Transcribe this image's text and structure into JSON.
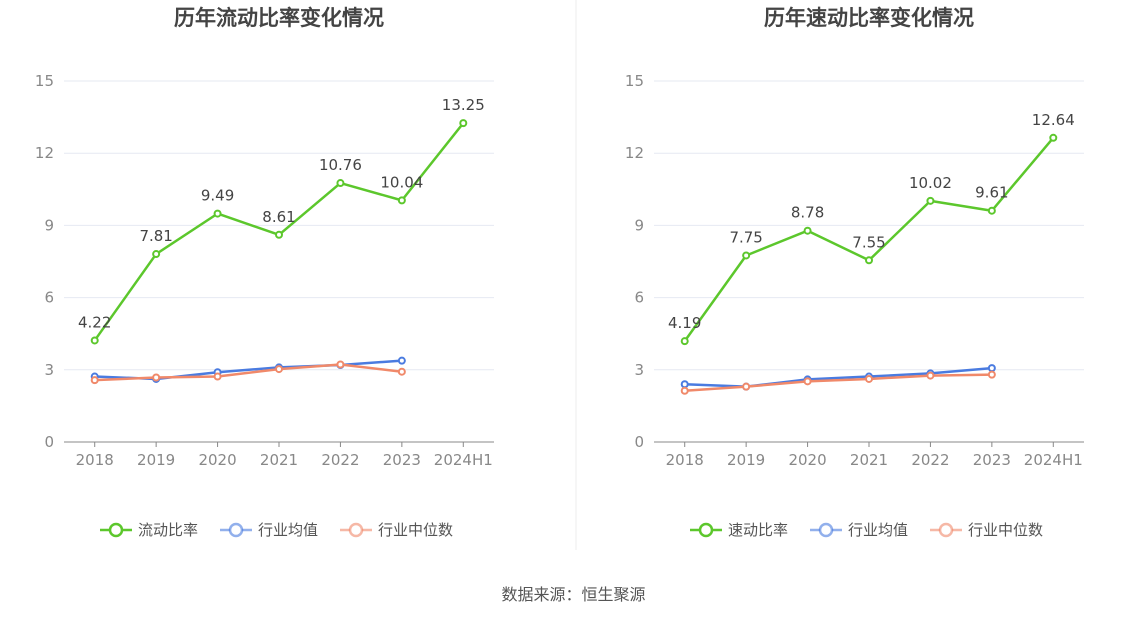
{
  "source": "数据来源：恒生聚源",
  "chart_data": [
    {
      "type": "line",
      "title": "历年流动比率变化情况",
      "categories": [
        "2018",
        "2019",
        "2020",
        "2021",
        "2022",
        "2023",
        "2024H1"
      ],
      "ylim": [
        0,
        15
      ],
      "yticks": [
        0,
        3,
        6,
        9,
        12,
        15
      ],
      "grid": true,
      "legend_position": "bottom",
      "series": [
        {
          "name": "流动比率",
          "color": "#5cc72c",
          "show_labels": true,
          "values": [
            4.22,
            7.81,
            9.49,
            8.61,
            10.76,
            10.04,
            13.25
          ]
        },
        {
          "name": "行业均值",
          "color": "#4a7be0",
          "show_labels": false,
          "values": [
            2.72,
            2.62,
            2.9,
            3.1,
            3.2,
            3.38,
            null
          ]
        },
        {
          "name": "行业中位数",
          "color": "#f0896a",
          "show_labels": false,
          "values": [
            2.57,
            2.68,
            2.72,
            3.03,
            3.22,
            2.92,
            null
          ]
        }
      ]
    },
    {
      "type": "line",
      "title": "历年速动比率变化情况",
      "categories": [
        "2018",
        "2019",
        "2020",
        "2021",
        "2022",
        "2023",
        "2024H1"
      ],
      "ylim": [
        0,
        15
      ],
      "yticks": [
        0,
        3,
        6,
        9,
        12,
        15
      ],
      "grid": true,
      "legend_position": "bottom",
      "series": [
        {
          "name": "速动比率",
          "color": "#5cc72c",
          "show_labels": true,
          "values": [
            4.19,
            7.75,
            8.78,
            7.55,
            10.02,
            9.61,
            12.64
          ]
        },
        {
          "name": "行业均值",
          "color": "#4a7be0",
          "show_labels": false,
          "values": [
            2.4,
            2.3,
            2.6,
            2.72,
            2.85,
            3.07,
            null
          ]
        },
        {
          "name": "行业中位数",
          "color": "#f0896a",
          "show_labels": false,
          "values": [
            2.13,
            2.3,
            2.52,
            2.62,
            2.76,
            2.8,
            null
          ]
        }
      ]
    }
  ]
}
